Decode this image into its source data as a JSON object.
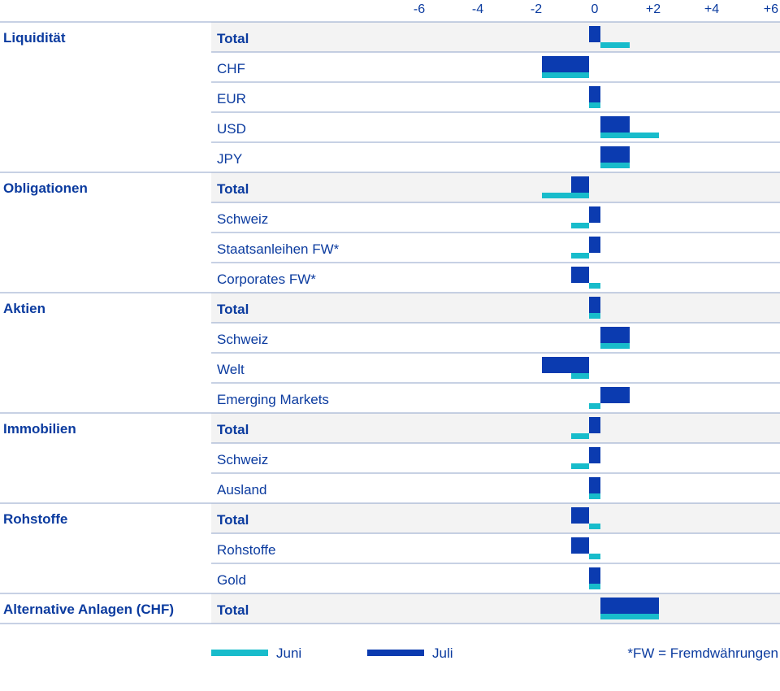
{
  "chart_data": {
    "type": "bar",
    "orientation": "horizontal",
    "xlim": [
      -6,
      6
    ],
    "x_ticks": [
      "-6",
      "-4",
      "-2",
      "0",
      "+2",
      "+4",
      "+6"
    ],
    "x_tick_values": [
      -6,
      -4,
      -2,
      0,
      2,
      4,
      6
    ],
    "series": [
      {
        "name": "Juni",
        "color": "#18bccb"
      },
      {
        "name": "Juli",
        "color": "#0b3bb0"
      }
    ],
    "groups": [
      {
        "name": "Liquidität",
        "rows": [
          {
            "label": "Total",
            "total": true,
            "juni": 1,
            "juli": 0
          },
          {
            "label": "CHF",
            "total": false,
            "juni": -2,
            "juli": -2
          },
          {
            "label": "EUR",
            "total": false,
            "juni": 0,
            "juli": 0
          },
          {
            "label": "USD",
            "total": false,
            "juni": 2,
            "juli": 1
          },
          {
            "label": "JPY",
            "total": false,
            "juni": 1,
            "juli": 1
          }
        ]
      },
      {
        "name": "Obligationen",
        "rows": [
          {
            "label": "Total",
            "total": true,
            "juni": -2,
            "juli": -1
          },
          {
            "label": "Schweiz",
            "total": false,
            "juni": -1,
            "juli": 0
          },
          {
            "label": "Staatsanleihen FW*",
            "total": false,
            "juni": -1,
            "juli": 0
          },
          {
            "label": "Corporates FW*",
            "total": false,
            "juni": 0,
            "juli": -1
          }
        ]
      },
      {
        "name": "Aktien",
        "rows": [
          {
            "label": "Total",
            "total": true,
            "juni": 0,
            "juli": 0
          },
          {
            "label": "Schweiz",
            "total": false,
            "juni": 1,
            "juli": 1
          },
          {
            "label": "Welt",
            "total": false,
            "juni": -1,
            "juli": -2
          },
          {
            "label": "Emerging Markets",
            "total": false,
            "juni": 0,
            "juli": 1
          }
        ]
      },
      {
        "name": "Immobilien",
        "rows": [
          {
            "label": "Total",
            "total": true,
            "juni": -1,
            "juli": 0
          },
          {
            "label": "Schweiz",
            "total": false,
            "juni": -1,
            "juli": 0
          },
          {
            "label": "Ausland",
            "total": false,
            "juni": 0,
            "juli": 0
          }
        ]
      },
      {
        "name": "Rohstoffe",
        "rows": [
          {
            "label": "Total",
            "total": true,
            "juni": 0,
            "juli": -1
          },
          {
            "label": "Rohstoffe",
            "total": false,
            "juni": 0,
            "juli": -1
          },
          {
            "label": "Gold",
            "total": false,
            "juni": 0,
            "juli": 0
          }
        ]
      },
      {
        "name": "Alternative Anlagen (CHF)",
        "rows": [
          {
            "label": "Total",
            "total": true,
            "juni": 2,
            "juli": 2
          }
        ]
      }
    ],
    "legend": [
      "Juni",
      "Juli"
    ],
    "legend_position": "bottom",
    "footnote": "*FW = Fremdwährungen"
  },
  "colors": {
    "label_text": "#0b3b9f",
    "divider": "#8fa3c9",
    "total_row_bg": "#f3f3f3"
  }
}
